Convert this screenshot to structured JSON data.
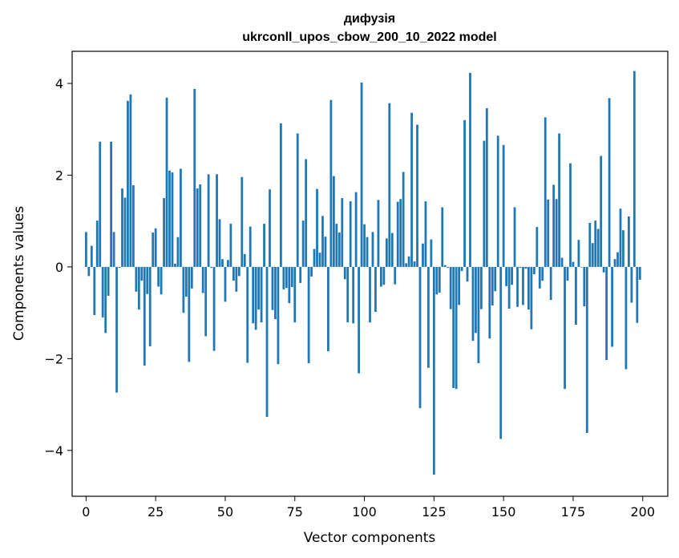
{
  "chart_data": {
    "type": "bar",
    "title": "дифузія",
    "subtitle": "ukrconll_upos_cbow_200_10_2022 model",
    "xlabel": "Vector components",
    "ylabel": "Components values",
    "xlim": [
      -5,
      209
    ],
    "ylim": [
      -5,
      4.7
    ],
    "xticks": [
      0,
      25,
      50,
      75,
      100,
      125,
      150,
      175,
      200
    ],
    "xtick_labels": [
      "0",
      "25",
      "50",
      "75",
      "100",
      "125",
      "150",
      "175",
      "200"
    ],
    "yticks": [
      -4,
      -2,
      0,
      2,
      4
    ],
    "ytick_labels": [
      "−4",
      "−2",
      "0",
      "2",
      "4"
    ],
    "grid": false,
    "color": "#1f77b4",
    "x": [
      0,
      1,
      2,
      3,
      4,
      5,
      6,
      7,
      8,
      9,
      10,
      11,
      12,
      13,
      14,
      15,
      16,
      17,
      18,
      19,
      20,
      21,
      22,
      23,
      24,
      25,
      26,
      27,
      28,
      29,
      30,
      31,
      32,
      33,
      34,
      35,
      36,
      37,
      38,
      39,
      40,
      41,
      42,
      43,
      44,
      45,
      46,
      47,
      48,
      49,
      50,
      51,
      52,
      53,
      54,
      55,
      56,
      57,
      58,
      59,
      60,
      61,
      62,
      63,
      64,
      65,
      66,
      67,
      68,
      69,
      70,
      71,
      72,
      73,
      74,
      75,
      76,
      77,
      78,
      79,
      80,
      81,
      82,
      83,
      84,
      85,
      86,
      87,
      88,
      89,
      90,
      91,
      92,
      93,
      94,
      95,
      96,
      97,
      98,
      99,
      100,
      101,
      102,
      103,
      104,
      105,
      106,
      107,
      108,
      109,
      110,
      111,
      112,
      113,
      114,
      115,
      116,
      117,
      118,
      119,
      120,
      121,
      122,
      123,
      124,
      125,
      126,
      127,
      128,
      129,
      130,
      131,
      132,
      133,
      134,
      135,
      136,
      137,
      138,
      139,
      140,
      141,
      142,
      143,
      144,
      145,
      146,
      147,
      148,
      149,
      150,
      151,
      152,
      153,
      154,
      155,
      156,
      157,
      158,
      159,
      160,
      161,
      162,
      163,
      164,
      165,
      166,
      167,
      168,
      169,
      170,
      171,
      172,
      173,
      174,
      175,
      176,
      177,
      178,
      179,
      180,
      181,
      182,
      183,
      184,
      185,
      186,
      187,
      188,
      189,
      190,
      191,
      192,
      193,
      194,
      195,
      196,
      197,
      198,
      199
    ],
    "values": [
      0.76,
      -0.2,
      0.46,
      -1.05,
      1.01,
      2.73,
      -1.1,
      -1.44,
      -0.63,
      2.73,
      0.76,
      -2.74,
      -0.02,
      1.71,
      1.51,
      3.62,
      3.76,
      1.78,
      -0.54,
      -0.93,
      -0.3,
      -2.15,
      -0.59,
      -1.73,
      0.75,
      0.84,
      -0.43,
      -0.6,
      1.5,
      3.69,
      2.1,
      2.06,
      0.07,
      0.65,
      2.14,
      -1.0,
      -0.65,
      -2.07,
      -0.47,
      3.88,
      1.71,
      1.8,
      -0.57,
      -1.51,
      2.02,
      -0.02,
      -1.83,
      2.02,
      1.04,
      0.17,
      -0.76,
      0.15,
      0.94,
      -0.3,
      -0.54,
      -0.2,
      1.96,
      0.28,
      -2.09,
      0.88,
      -1.23,
      -1.37,
      -0.93,
      -1.21,
      0.94,
      -3.27,
      1.69,
      -0.94,
      -1.14,
      -2.12,
      3.13,
      -0.49,
      -0.46,
      -0.79,
      -0.44,
      -1.21,
      2.91,
      -0.35,
      1.01,
      2.35,
      -2.1,
      -0.21,
      0.39,
      1.7,
      0.31,
      1.11,
      0.66,
      -1.84,
      3.64,
      1.98,
      0.94,
      0.75,
      1.5,
      -0.27,
      -1.21,
      1.43,
      -1.23,
      1.63,
      -2.32,
      4.02,
      0.93,
      0.65,
      -1.21,
      0.76,
      -0.98,
      1.46,
      -0.43,
      -0.39,
      0.62,
      3.57,
      0.74,
      -0.38,
      1.42,
      1.48,
      2.07,
      0.08,
      0.23,
      3.36,
      0.12,
      3.1,
      -3.08,
      0.51,
      1.43,
      -2.2,
      0.6,
      -4.53,
      -0.6,
      -0.56,
      1.3,
      0.04,
      -0.02,
      -0.92,
      -2.64,
      -2.66,
      -0.83,
      -0.09,
      3.2,
      -0.32,
      4.23,
      -1.61,
      -1.44,
      -2.1,
      -0.92,
      2.75,
      3.46,
      -1.56,
      -0.84,
      -0.53,
      2.86,
      -3.75,
      2.66,
      -0.42,
      -0.91,
      -0.39,
      1.3,
      -0.87,
      -0.02,
      -0.83,
      -0.04,
      -0.93,
      -1.36,
      -0.16,
      0.87,
      -0.47,
      -0.3,
      3.26,
      1.47,
      -0.72,
      1.79,
      1.48,
      2.91,
      0.2,
      -2.66,
      -0.3,
      2.26,
      0.11,
      -1.26,
      0.59,
      -0.01,
      -0.86,
      -3.62,
      0.96,
      0.52,
      1.01,
      0.83,
      2.42,
      -0.12,
      -2.03,
      3.68,
      -1.74,
      0.17,
      0.32,
      1.27,
      0.8,
      -2.23,
      1.1,
      -0.78,
      4.27,
      -1.22,
      -0.28
    ]
  }
}
